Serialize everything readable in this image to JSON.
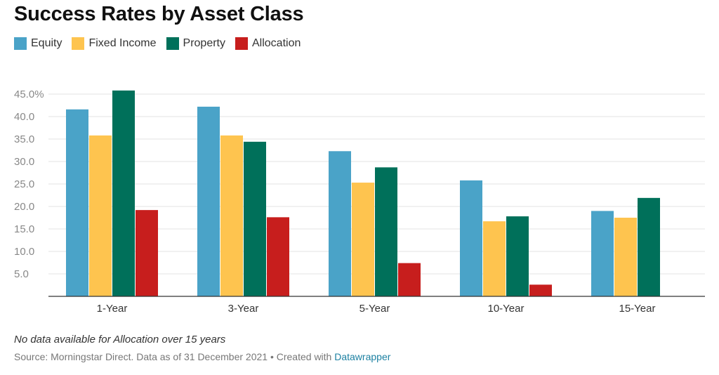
{
  "header": {
    "title": "Success Rates by Asset Class"
  },
  "colors": {
    "equity": "#4aa3c8",
    "fixed_income": "#fec44f",
    "property": "#00705a",
    "allocation": "#c71e1d",
    "link": "#1d81a2"
  },
  "footer": {
    "note": "No data available for Allocation over 15 years",
    "source": "Source: Morningstar Direct. Data as of 31 December 2021 • Created with ",
    "credit_link": "Datawrapper"
  },
  "chart_data": {
    "type": "bar",
    "title": "Success Rates by Asset Class",
    "xlabel": "",
    "ylabel": "",
    "categories": [
      "1-Year",
      "3-Year",
      "5-Year",
      "10-Year",
      "15-Year"
    ],
    "series": [
      {
        "name": "Equity",
        "color": "#4aa3c8",
        "values": [
          41.6,
          42.2,
          32.3,
          25.8,
          19.0
        ]
      },
      {
        "name": "Fixed Income",
        "color": "#fec44f",
        "values": [
          35.8,
          35.8,
          25.3,
          16.7,
          17.5
        ]
      },
      {
        "name": "Property",
        "color": "#00705a",
        "values": [
          45.8,
          34.4,
          28.7,
          17.8,
          21.9
        ]
      },
      {
        "name": "Allocation",
        "color": "#c71e1d",
        "values": [
          19.2,
          17.6,
          7.4,
          2.6,
          null
        ]
      }
    ],
    "yticks": [
      "45.0%",
      "40.0",
      "35.0",
      "30.0",
      "25.0",
      "20.0",
      "15.0",
      "10.0",
      "5.0"
    ],
    "ytick_values": [
      45,
      40,
      35,
      30,
      25,
      20,
      15,
      10,
      5
    ],
    "ylim": [
      0,
      45
    ],
    "grid": true,
    "legend_position": "top-left"
  }
}
